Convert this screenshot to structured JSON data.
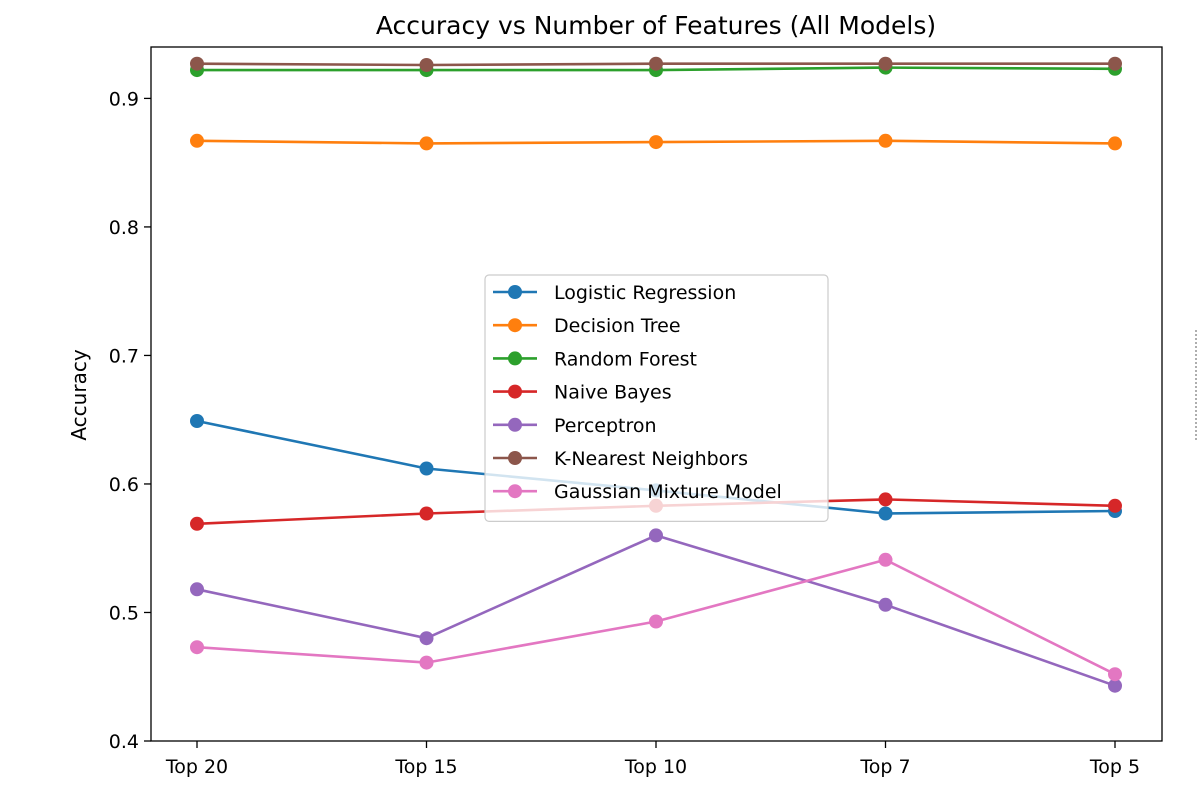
{
  "chart_data": {
    "type": "line",
    "title": "Accuracy vs Number of Features (All Models)",
    "xlabel": "",
    "ylabel": "Accuracy",
    "categories": [
      "Top 20",
      "Top 15",
      "Top 10",
      "Top 7",
      "Top 5"
    ],
    "ylim": [
      0.4,
      0.94
    ],
    "yticks": [
      0.4,
      0.5,
      0.6,
      0.7,
      0.8,
      0.9
    ],
    "grid": false,
    "legend_position": "center",
    "series": [
      {
        "name": "Logistic Regression",
        "color": "#1f77b4",
        "values": [
          0.649,
          0.612,
          0.595,
          0.577,
          0.579
        ]
      },
      {
        "name": "Decision Tree",
        "color": "#ff7f0e",
        "values": [
          0.867,
          0.865,
          0.866,
          0.867,
          0.865
        ]
      },
      {
        "name": "Random Forest",
        "color": "#2ca02c",
        "values": [
          0.922,
          0.922,
          0.922,
          0.924,
          0.923
        ]
      },
      {
        "name": "Naive Bayes",
        "color": "#d62728",
        "values": [
          0.569,
          0.577,
          0.583,
          0.588,
          0.583
        ]
      },
      {
        "name": "Perceptron",
        "color": "#9467bd",
        "values": [
          0.518,
          0.48,
          0.56,
          0.506,
          0.443
        ]
      },
      {
        "name": "K-Nearest Neighbors",
        "color": "#8c564b",
        "values": [
          0.927,
          0.926,
          0.927,
          0.927,
          0.927
        ]
      },
      {
        "name": "Gaussian Mixture Model",
        "color": "#e377c2",
        "values": [
          0.473,
          0.461,
          0.493,
          0.541,
          0.452
        ]
      }
    ]
  }
}
